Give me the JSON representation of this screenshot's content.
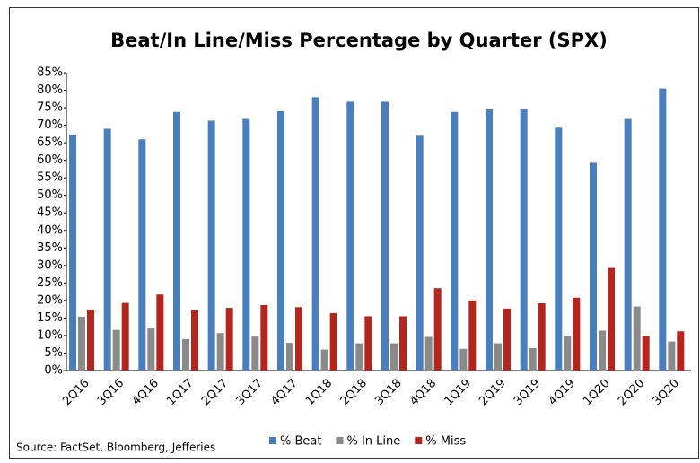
{
  "chart_data": {
    "type": "bar",
    "title": "Beat/In Line/Miss Percentage by Quarter (SPX)",
    "source": "Source: FactSet, Bloomberg, Jefferies",
    "categories": [
      "2Q16",
      "3Q16",
      "4Q16",
      "1Q17",
      "2Q17",
      "3Q17",
      "4Q17",
      "1Q18",
      "2Q18",
      "3Q18",
      "4Q18",
      "1Q19",
      "2Q19",
      "3Q19",
      "4Q19",
      "1Q20",
      "2Q20",
      "3Q20"
    ],
    "series": [
      {
        "name": "% Beat",
        "color": "#4a7ebf",
        "values": [
          67.2,
          69,
          66,
          73.8,
          71.3,
          71.8,
          74,
          78,
          76.7,
          76.7,
          67,
          73.8,
          74.5,
          74.5,
          69.3,
          59.3,
          71.8,
          80.5
        ]
      },
      {
        "name": "% In Line",
        "color": "#8a8a8a",
        "values": [
          15.4,
          11.6,
          12.3,
          9,
          10.7,
          9.7,
          7.9,
          6,
          7.8,
          7.8,
          9.6,
          6.2,
          7.8,
          6.4,
          10,
          11.4,
          18.3,
          8.3
        ]
      },
      {
        "name": "% Miss",
        "color": "#b3261e",
        "values": [
          17.4,
          19.3,
          21.7,
          17.2,
          17.9,
          18.7,
          18.1,
          16.4,
          15.5,
          15.5,
          23.5,
          20,
          17.7,
          19.2,
          20.8,
          29.3,
          9.9,
          11.2
        ]
      }
    ],
    "ylim": [
      0,
      85
    ],
    "yticks": [
      {
        "value": 0,
        "label": "0%"
      },
      {
        "value": 5,
        "label": "5%"
      },
      {
        "value": 10,
        "label": "10%"
      },
      {
        "value": 15,
        "label": "15%"
      },
      {
        "value": 20,
        "label": "20%"
      },
      {
        "value": 25,
        "label": "25%"
      },
      {
        "value": 30,
        "label": "30%"
      },
      {
        "value": 35,
        "label": "35%"
      },
      {
        "value": 40,
        "label": "40%"
      },
      {
        "value": 45,
        "label": "45%"
      },
      {
        "value": 50,
        "label": "50%"
      },
      {
        "value": 55,
        "label": "55%"
      },
      {
        "value": 60,
        "label": "60%"
      },
      {
        "value": 65,
        "label": "65%"
      },
      {
        "value": 70,
        "label": "70%"
      },
      {
        "value": 75,
        "label": "75%"
      },
      {
        "value": 80,
        "label": "80%"
      },
      {
        "value": 85,
        "label": "85%"
      }
    ],
    "legend": "bottom"
  }
}
